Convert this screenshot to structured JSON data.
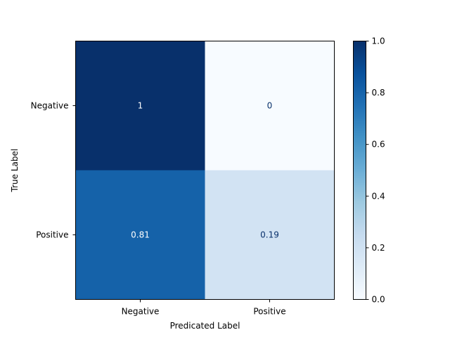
{
  "chart_data": {
    "type": "heatmap",
    "title": "",
    "xlabel": "Predicated Label",
    "ylabel": "True Label",
    "x_categories": [
      "Negative",
      "Positive"
    ],
    "y_categories": [
      "Negative",
      "Positive"
    ],
    "values": [
      [
        1,
        0
      ],
      [
        0.81,
        0.19
      ]
    ],
    "cell_labels": [
      [
        "1",
        "0"
      ],
      [
        "0.81",
        "0.19"
      ]
    ],
    "colormap": "Blues",
    "colorbar": {
      "vmin": 0.0,
      "vmax": 1.0,
      "ticks": [
        "0.0",
        "0.2",
        "0.4",
        "0.6",
        "0.8",
        "1.0"
      ]
    },
    "colors": {
      "dark_text": "#08306b",
      "light_text": "#ffffff"
    }
  }
}
